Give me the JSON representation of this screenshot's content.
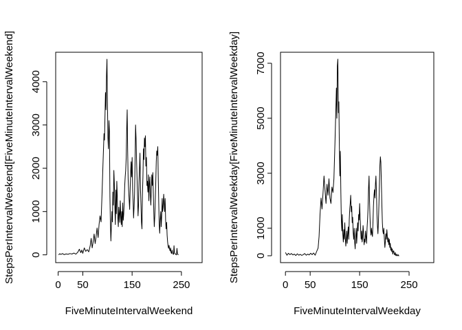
{
  "chart_data": [
    {
      "type": "line",
      "xlabel": "FiveMinuteIntervalWeekend",
      "ylabel": "StepsPerIntervalWeekend[FiveMinuteIntervalWeekend]",
      "xlim": [
        -5,
        292
      ],
      "ylim": [
        -180,
        4680
      ],
      "xticks": [
        0,
        50,
        150,
        250
      ],
      "yticks": [
        0,
        1000,
        2000,
        3000,
        4000
      ],
      "grid": false,
      "points": [
        [
          1,
          0
        ],
        [
          3,
          25
        ],
        [
          6,
          10
        ],
        [
          9,
          30
        ],
        [
          12,
          5
        ],
        [
          16,
          20
        ],
        [
          20,
          12
        ],
        [
          24,
          30
        ],
        [
          28,
          18
        ],
        [
          32,
          40
        ],
        [
          36,
          15
        ],
        [
          40,
          65
        ],
        [
          43,
          130
        ],
        [
          46,
          50
        ],
        [
          48,
          110
        ],
        [
          50,
          35
        ],
        [
          53,
          160
        ],
        [
          56,
          80
        ],
        [
          59,
          120
        ],
        [
          62,
          70
        ],
        [
          65,
          210
        ],
        [
          67,
          380
        ],
        [
          69,
          160
        ],
        [
          71,
          300
        ],
        [
          73,
          480
        ],
        [
          75,
          260
        ],
        [
          77,
          420
        ],
        [
          79,
          620
        ],
        [
          81,
          400
        ],
        [
          83,
          700
        ],
        [
          85,
          900
        ],
        [
          87,
          760
        ],
        [
          89,
          1400
        ],
        [
          91,
          2100
        ],
        [
          93,
          2800
        ],
        [
          94,
          2650
        ],
        [
          96,
          3750
        ],
        [
          97,
          3350
        ],
        [
          98,
          4150
        ],
        [
          99,
          4520
        ],
        [
          100,
          3500
        ],
        [
          101,
          2700
        ],
        [
          102,
          2450
        ],
        [
          103,
          3100
        ],
        [
          104,
          2850
        ],
        [
          105,
          1350
        ],
        [
          106,
          700
        ],
        [
          107,
          320
        ],
        [
          108,
          650
        ],
        [
          109,
          1000
        ],
        [
          110,
          760
        ],
        [
          111,
          1450
        ],
        [
          112,
          1150
        ],
        [
          113,
          1950
        ],
        [
          114,
          1650
        ],
        [
          115,
          1100
        ],
        [
          116,
          700
        ],
        [
          117,
          1500
        ],
        [
          118,
          950
        ],
        [
          119,
          1700
        ],
        [
          120,
          1350
        ],
        [
          121,
          850
        ],
        [
          122,
          650
        ],
        [
          123,
          1100
        ],
        [
          124,
          950
        ],
        [
          125,
          750
        ],
        [
          126,
          1250
        ],
        [
          127,
          900
        ],
        [
          128,
          700
        ],
        [
          129,
          1000
        ],
        [
          130,
          650
        ],
        [
          131,
          1200
        ],
        [
          132,
          800
        ],
        [
          133,
          950
        ],
        [
          134,
          1250
        ],
        [
          135,
          1600
        ],
        [
          136,
          1800
        ],
        [
          137,
          1950
        ],
        [
          138,
          2250
        ],
        [
          139,
          2900
        ],
        [
          140,
          3350
        ],
        [
          141,
          2400
        ],
        [
          142,
          1750
        ],
        [
          143,
          1500
        ],
        [
          144,
          1250
        ],
        [
          145,
          1050
        ],
        [
          146,
          1500
        ],
        [
          147,
          1900
        ],
        [
          148,
          2150
        ],
        [
          149,
          1800
        ],
        [
          150,
          2250
        ],
        [
          151,
          1500
        ],
        [
          152,
          1250
        ],
        [
          153,
          850
        ],
        [
          154,
          1100
        ],
        [
          155,
          1400
        ],
        [
          156,
          2200
        ],
        [
          157,
          3000
        ],
        [
          158,
          2700
        ],
        [
          159,
          2200
        ],
        [
          160,
          1800
        ],
        [
          161,
          1350
        ],
        [
          162,
          900
        ],
        [
          163,
          1150
        ],
        [
          164,
          1700
        ],
        [
          165,
          2000
        ],
        [
          166,
          2350
        ],
        [
          167,
          1500
        ],
        [
          168,
          1150
        ],
        [
          169,
          750
        ],
        [
          170,
          600
        ],
        [
          171,
          1400
        ],
        [
          172,
          1800
        ],
        [
          173,
          2450
        ],
        [
          174,
          2200
        ],
        [
          175,
          2700
        ],
        [
          176,
          2500
        ],
        [
          177,
          2750
        ],
        [
          178,
          2050
        ],
        [
          179,
          2250
        ],
        [
          180,
          1600
        ],
        [
          181,
          1700
        ],
        [
          182,
          1450
        ],
        [
          183,
          1850
        ],
        [
          184,
          1250
        ],
        [
          185,
          1650
        ],
        [
          186,
          1800
        ],
        [
          187,
          1400
        ],
        [
          188,
          1150
        ],
        [
          189,
          1500
        ],
        [
          190,
          1850
        ],
        [
          191,
          1600
        ],
        [
          192,
          1900
        ],
        [
          193,
          1450
        ],
        [
          194,
          1000
        ],
        [
          195,
          650
        ],
        [
          196,
          900
        ],
        [
          197,
          1300
        ],
        [
          198,
          1700
        ],
        [
          199,
          2150
        ],
        [
          200,
          2400
        ],
        [
          201,
          2300
        ],
        [
          202,
          2500
        ],
        [
          203,
          1800
        ],
        [
          204,
          1200
        ],
        [
          205,
          700
        ],
        [
          206,
          500
        ],
        [
          207,
          800
        ],
        [
          208,
          1000
        ],
        [
          209,
          650
        ],
        [
          210,
          900
        ],
        [
          211,
          1300
        ],
        [
          212,
          1000
        ],
        [
          213,
          1100
        ],
        [
          214,
          1400
        ],
        [
          215,
          1200
        ],
        [
          216,
          1000
        ],
        [
          217,
          1300
        ],
        [
          218,
          800
        ],
        [
          219,
          600
        ],
        [
          220,
          750
        ],
        [
          221,
          450
        ],
        [
          222,
          300
        ],
        [
          223,
          200
        ],
        [
          224,
          150
        ],
        [
          225,
          220
        ],
        [
          226,
          130
        ],
        [
          227,
          90
        ],
        [
          228,
          160
        ],
        [
          229,
          60
        ],
        [
          230,
          30
        ],
        [
          231,
          110
        ],
        [
          232,
          40
        ],
        [
          233,
          20
        ],
        [
          234,
          10
        ],
        [
          235,
          210
        ],
        [
          236,
          40
        ],
        [
          238,
          15
        ],
        [
          240,
          0
        ],
        [
          241,
          150
        ],
        [
          242,
          30
        ],
        [
          243,
          5
        ],
        [
          244,
          0
        ]
      ]
    },
    {
      "type": "line",
      "xlabel": "FiveMinuteIntervalWeekday",
      "ylabel": "StepsPerIntervalWeekday[FiveMinuteIntervalWeekday]",
      "xlim": [
        -10,
        300
      ],
      "ylim": [
        -250,
        7400
      ],
      "xticks": [
        0,
        50,
        150,
        250
      ],
      "yticks": [
        0,
        1000,
        3000,
        5000,
        7000
      ],
      "grid": false,
      "points": [
        [
          0,
          120
        ],
        [
          3,
          20
        ],
        [
          6,
          90
        ],
        [
          9,
          40
        ],
        [
          12,
          80
        ],
        [
          15,
          30
        ],
        [
          18,
          60
        ],
        [
          21,
          10
        ],
        [
          24,
          70
        ],
        [
          27,
          20
        ],
        [
          30,
          50
        ],
        [
          33,
          15
        ],
        [
          36,
          40
        ],
        [
          39,
          80
        ],
        [
          42,
          20
        ],
        [
          45,
          60
        ],
        [
          48,
          30
        ],
        [
          51,
          90
        ],
        [
          54,
          40
        ],
        [
          57,
          100
        ],
        [
          60,
          20
        ],
        [
          63,
          150
        ],
        [
          66,
          280
        ],
        [
          68,
          700
        ],
        [
          70,
          1500
        ],
        [
          72,
          2100
        ],
        [
          74,
          1700
        ],
        [
          76,
          2300
        ],
        [
          78,
          2900
        ],
        [
          80,
          2400
        ],
        [
          82,
          1900
        ],
        [
          84,
          2600
        ],
        [
          86,
          2200
        ],
        [
          88,
          2800
        ],
        [
          90,
          2100
        ],
        [
          92,
          1900
        ],
        [
          94,
          2500
        ],
        [
          96,
          2300
        ],
        [
          98,
          2800
        ],
        [
          100,
          4000
        ],
        [
          102,
          5400
        ],
        [
          103,
          6100
        ],
        [
          104,
          5000
        ],
        [
          105,
          6900
        ],
        [
          106,
          7150
        ],
        [
          107,
          5200
        ],
        [
          108,
          5600
        ],
        [
          109,
          4000
        ],
        [
          110,
          2900
        ],
        [
          111,
          3800
        ],
        [
          112,
          2300
        ],
        [
          113,
          1300
        ],
        [
          114,
          900
        ],
        [
          115,
          1500
        ],
        [
          116,
          800
        ],
        [
          117,
          500
        ],
        [
          118,
          950
        ],
        [
          119,
          600
        ],
        [
          120,
          1200
        ],
        [
          121,
          700
        ],
        [
          122,
          350
        ],
        [
          123,
          600
        ],
        [
          124,
          900
        ],
        [
          125,
          450
        ],
        [
          126,
          800
        ],
        [
          127,
          1050
        ],
        [
          128,
          600
        ],
        [
          129,
          1300
        ],
        [
          130,
          1700
        ],
        [
          131,
          1900
        ],
        [
          132,
          2200
        ],
        [
          133,
          1600
        ],
        [
          134,
          1800
        ],
        [
          135,
          1200
        ],
        [
          136,
          1400
        ],
        [
          137,
          850
        ],
        [
          138,
          600
        ],
        [
          139,
          1000
        ],
        [
          140,
          500
        ],
        [
          141,
          250
        ],
        [
          142,
          700
        ],
        [
          143,
          1000
        ],
        [
          144,
          450
        ],
        [
          145,
          800
        ],
        [
          146,
          1200
        ],
        [
          147,
          900
        ],
        [
          148,
          1500
        ],
        [
          149,
          1300
        ],
        [
          150,
          1900
        ],
        [
          151,
          1400
        ],
        [
          152,
          1000
        ],
        [
          153,
          600
        ],
        [
          154,
          900
        ],
        [
          155,
          500
        ],
        [
          156,
          650
        ],
        [
          157,
          1100
        ],
        [
          158,
          800
        ],
        [
          159,
          400
        ],
        [
          160,
          600
        ],
        [
          161,
          500
        ],
        [
          162,
          900
        ],
        [
          163,
          700
        ],
        [
          164,
          450
        ],
        [
          165,
          1000
        ],
        [
          166,
          1300
        ],
        [
          167,
          1700
        ],
        [
          168,
          2400
        ],
        [
          169,
          2900
        ],
        [
          170,
          2000
        ],
        [
          171,
          1400
        ],
        [
          172,
          950
        ],
        [
          173,
          750
        ],
        [
          174,
          1000
        ],
        [
          175,
          800
        ],
        [
          176,
          700
        ],
        [
          177,
          1200
        ],
        [
          178,
          1800
        ],
        [
          179,
          2200
        ],
        [
          180,
          2400
        ],
        [
          181,
          2100
        ],
        [
          182,
          2600
        ],
        [
          183,
          2900
        ],
        [
          184,
          2300
        ],
        [
          185,
          1500
        ],
        [
          186,
          1100
        ],
        [
          187,
          800
        ],
        [
          188,
          1200
        ],
        [
          189,
          1900
        ],
        [
          190,
          2600
        ],
        [
          191,
          3300
        ],
        [
          192,
          3600
        ],
        [
          193,
          3400
        ],
        [
          194,
          2700
        ],
        [
          195,
          1800
        ],
        [
          196,
          1200
        ],
        [
          197,
          900
        ],
        [
          198,
          800
        ],
        [
          199,
          1000
        ],
        [
          200,
          600
        ],
        [
          201,
          300
        ],
        [
          202,
          500
        ],
        [
          203,
          800
        ],
        [
          204,
          600
        ],
        [
          205,
          950
        ],
        [
          206,
          700
        ],
        [
          207,
          500
        ],
        [
          208,
          650
        ],
        [
          209,
          400
        ],
        [
          210,
          600
        ],
        [
          211,
          300
        ],
        [
          212,
          450
        ],
        [
          213,
          200
        ],
        [
          214,
          300
        ],
        [
          215,
          150
        ],
        [
          216,
          250
        ],
        [
          217,
          60
        ],
        [
          218,
          150
        ],
        [
          219,
          180
        ],
        [
          220,
          60
        ],
        [
          221,
          30
        ],
        [
          222,
          120
        ],
        [
          223,
          20
        ],
        [
          224,
          0
        ],
        [
          225,
          60
        ],
        [
          226,
          10
        ],
        [
          227,
          0
        ],
        [
          228,
          40
        ],
        [
          229,
          0
        ],
        [
          230,
          0
        ]
      ]
    }
  ]
}
